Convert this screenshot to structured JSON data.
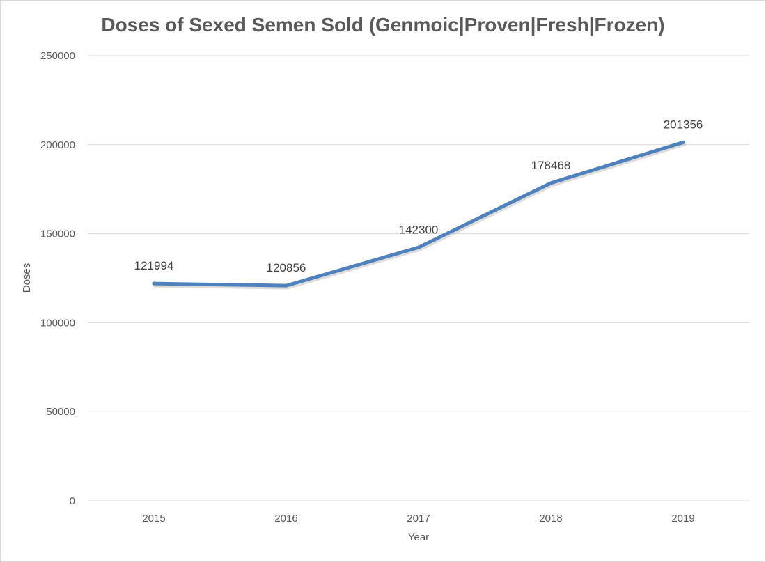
{
  "chart_data": {
    "type": "line",
    "title": "Doses of Sexed Semen Sold (Genmoic|Proven|Fresh|Frozen)",
    "xlabel": "Year",
    "ylabel": "Doses",
    "categories": [
      "2015",
      "2016",
      "2017",
      "2018",
      "2019"
    ],
    "series": [
      {
        "values": [
          121994,
          120856,
          142300,
          178468,
          201356
        ]
      }
    ],
    "data_labels": [
      "121994",
      "120856",
      "142300",
      "178468",
      "201356"
    ],
    "ylim": [
      0,
      250000
    ],
    "yticks": [
      "0",
      "50000",
      "100000",
      "150000",
      "200000",
      "250000"
    ],
    "grid": true,
    "legend": "none",
    "colors": {
      "line": "#4f81bd",
      "grid": "#d9d9d9",
      "text": "#595959"
    }
  }
}
